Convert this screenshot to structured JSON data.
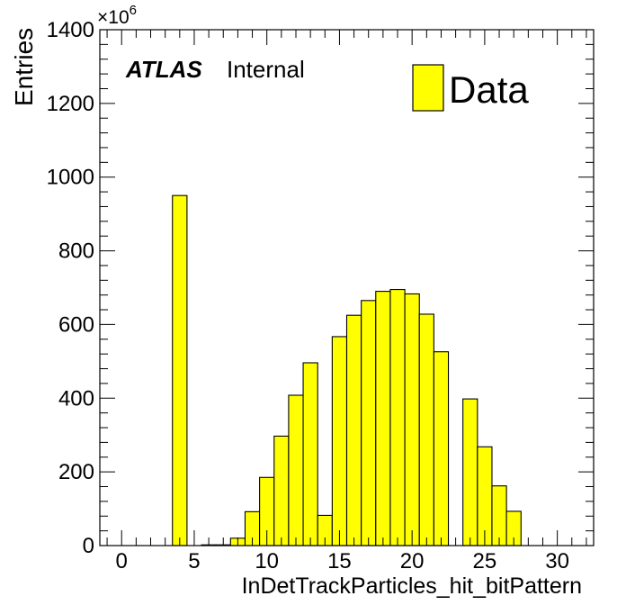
{
  "chart_data": {
    "type": "bar",
    "xlabel": "InDetTrackParticles_hit_bitPattern",
    "ylabel": "Entries",
    "y_multiplier_base": "×10",
    "y_multiplier_exp": "6",
    "xlim": [
      -1.5,
      32.5
    ],
    "ylim": [
      0,
      1400
    ],
    "x_ticks": [
      0,
      5,
      10,
      15,
      20,
      25,
      30
    ],
    "y_ticks": [
      0,
      200,
      400,
      600,
      800,
      1000,
      1200,
      1400
    ],
    "bin_width": 1,
    "bins": [
      {
        "x": 4,
        "value": 950
      },
      {
        "x": 6,
        "value": 2
      },
      {
        "x": 7,
        "value": 2
      },
      {
        "x": 8,
        "value": 20
      },
      {
        "x": 9,
        "value": 92
      },
      {
        "x": 10,
        "value": 185
      },
      {
        "x": 11,
        "value": 297
      },
      {
        "x": 12,
        "value": 408
      },
      {
        "x": 13,
        "value": 496
      },
      {
        "x": 14,
        "value": 82
      },
      {
        "x": 15,
        "value": 567
      },
      {
        "x": 16,
        "value": 625
      },
      {
        "x": 17,
        "value": 665
      },
      {
        "x": 18,
        "value": 690
      },
      {
        "x": 19,
        "value": 695
      },
      {
        "x": 20,
        "value": 683
      },
      {
        "x": 21,
        "value": 628
      },
      {
        "x": 22,
        "value": 526
      },
      {
        "x": 24,
        "value": 398
      },
      {
        "x": 25,
        "value": 268
      },
      {
        "x": 26,
        "value": 162
      },
      {
        "x": 27,
        "value": 93
      }
    ],
    "fill_color": "#ffff00",
    "line_color": "#000000",
    "legend": {
      "label": "Data",
      "position": "top-right"
    },
    "annotation": {
      "bold": "ATLAS",
      "normal": "Internal"
    }
  }
}
